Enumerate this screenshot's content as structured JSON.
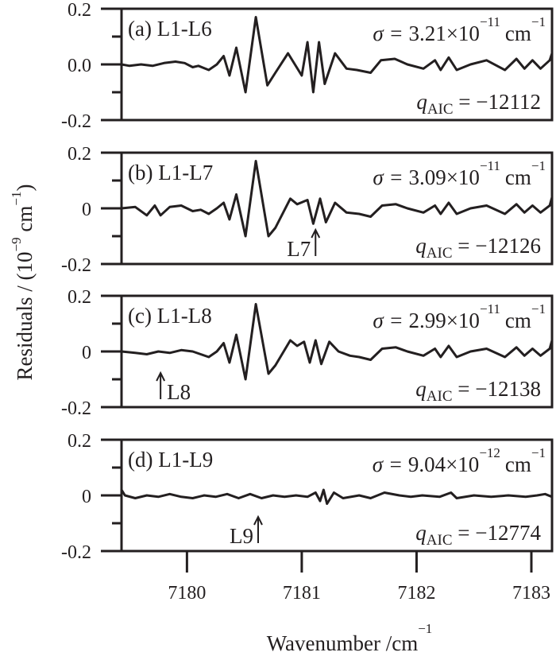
{
  "chart_data": {
    "type": "line",
    "xlabel": "Wavenumber /cm",
    "xlabel_sup": "−1",
    "ylabel": "Residuals / (10",
    "ylabel_sup1": "−9",
    "ylabel_mid": " cm",
    "ylabel_sup2": "−1",
    "ylabel_end": ")",
    "xlim": [
      7179.43,
      7183.18
    ],
    "ylim": [
      -0.2,
      0.2
    ],
    "x_ticks": [
      7180,
      7181,
      7182,
      7183
    ],
    "x_tick_labels": [
      "7180",
      "7181",
      "7182",
      "7183"
    ],
    "y_minor_step": 0.1,
    "color": "#231f20",
    "panels": [
      {
        "label": "(a) L1-L6",
        "y_tick_labels": [
          "0.2",
          "0.0",
          "-0.2"
        ],
        "sigma_prefix": "σ = ",
        "sigma_mantissa": "3.21×10",
        "sigma_exp": "−11",
        "sigma_unit": "cm",
        "sigma_unit_exp": "−1",
        "q_sym": "q",
        "q_sub": "AIC",
        "q_value": " = −12112",
        "arrow": null,
        "points": [
          [
            7179.43,
            0.0
          ],
          [
            7179.5,
            -0.005
          ],
          [
            7179.6,
            0.0
          ],
          [
            7179.7,
            -0.005
          ],
          [
            7179.8,
            0.005
          ],
          [
            7179.9,
            0.01
          ],
          [
            7179.98,
            0.005
          ],
          [
            7180.05,
            -0.01
          ],
          [
            7180.1,
            -0.005
          ],
          [
            7180.19,
            -0.02
          ],
          [
            7180.26,
            0.0
          ],
          [
            7180.32,
            0.03
          ],
          [
            7180.37,
            -0.04
          ],
          [
            7180.43,
            0.06
          ],
          [
            7180.51,
            -0.1
          ],
          [
            7180.6,
            0.17
          ],
          [
            7180.7,
            -0.075
          ],
          [
            7180.77,
            -0.03
          ],
          [
            7180.88,
            0.04
          ],
          [
            7181.0,
            -0.04
          ],
          [
            7181.05,
            0.08
          ],
          [
            7181.1,
            -0.1
          ],
          [
            7181.15,
            0.08
          ],
          [
            7181.2,
            -0.07
          ],
          [
            7181.29,
            0.04
          ],
          [
            7181.39,
            -0.015
          ],
          [
            7181.48,
            -0.02
          ],
          [
            7181.6,
            -0.03
          ],
          [
            7181.69,
            0.015
          ],
          [
            7181.81,
            0.02
          ],
          [
            7181.92,
            0.0
          ],
          [
            7182.06,
            -0.015
          ],
          [
            7182.16,
            0.015
          ],
          [
            7182.21,
            -0.02
          ],
          [
            7182.28,
            0.025
          ],
          [
            7182.35,
            -0.02
          ],
          [
            7182.47,
            0.0
          ],
          [
            7182.61,
            0.015
          ],
          [
            7182.77,
            -0.02
          ],
          [
            7182.87,
            0.02
          ],
          [
            7182.94,
            -0.015
          ],
          [
            7183.01,
            0.015
          ],
          [
            7183.08,
            -0.015
          ],
          [
            7183.16,
            0.015
          ],
          [
            7183.18,
            0.04
          ]
        ]
      },
      {
        "label": "(b) L1-L7",
        "y_tick_labels": [
          "0.2",
          "0",
          "-0.2"
        ],
        "sigma_prefix": "σ = ",
        "sigma_mantissa": "3.09×10",
        "sigma_exp": "−11",
        "sigma_unit": "cm",
        "sigma_unit_exp": "−1",
        "q_sym": "q",
        "q_sub": "AIC",
        "q_value": " = −12126",
        "arrow": {
          "label": "L7",
          "x": 7181.12,
          "label_side": "left"
        },
        "points": [
          [
            7179.43,
            0.0
          ],
          [
            7179.55,
            0.005
          ],
          [
            7179.65,
            -0.025
          ],
          [
            7179.72,
            0.01
          ],
          [
            7179.77,
            -0.025
          ],
          [
            7179.85,
            0.005
          ],
          [
            7179.95,
            0.01
          ],
          [
            7180.05,
            -0.01
          ],
          [
            7180.12,
            -0.005
          ],
          [
            7180.19,
            -0.02
          ],
          [
            7180.26,
            0.0
          ],
          [
            7180.32,
            0.02
          ],
          [
            7180.37,
            -0.04
          ],
          [
            7180.43,
            0.05
          ],
          [
            7180.51,
            -0.1
          ],
          [
            7180.6,
            0.17
          ],
          [
            7180.71,
            -0.1
          ],
          [
            7180.77,
            -0.07
          ],
          [
            7180.9,
            0.035
          ],
          [
            7180.96,
            0.015
          ],
          [
            7181.05,
            0.03
          ],
          [
            7181.1,
            -0.055
          ],
          [
            7181.16,
            0.035
          ],
          [
            7181.21,
            -0.05
          ],
          [
            7181.29,
            0.02
          ],
          [
            7181.39,
            -0.015
          ],
          [
            7181.5,
            -0.02
          ],
          [
            7181.6,
            -0.03
          ],
          [
            7181.7,
            0.01
          ],
          [
            7181.82,
            0.015
          ],
          [
            7181.92,
            0.0
          ],
          [
            7182.06,
            -0.015
          ],
          [
            7182.16,
            0.01
          ],
          [
            7182.21,
            -0.02
          ],
          [
            7182.28,
            0.02
          ],
          [
            7182.35,
            -0.02
          ],
          [
            7182.47,
            0.0
          ],
          [
            7182.61,
            0.01
          ],
          [
            7182.77,
            -0.02
          ],
          [
            7182.87,
            0.015
          ],
          [
            7182.94,
            -0.015
          ],
          [
            7183.01,
            0.01
          ],
          [
            7183.08,
            -0.015
          ],
          [
            7183.16,
            0.01
          ],
          [
            7183.18,
            0.04
          ]
        ]
      },
      {
        "label": "(c) L1-L8",
        "y_tick_labels": [
          "0.2",
          "0",
          "-0.2"
        ],
        "sigma_prefix": "σ = ",
        "sigma_mantissa": "2.99×10",
        "sigma_exp": "−11",
        "sigma_unit": "cm",
        "sigma_unit_exp": "−1",
        "q_sym": "q",
        "q_sub": "AIC",
        "q_value": " = −12138",
        "arrow": {
          "label": "L8",
          "x": 7179.77,
          "label_side": "right"
        },
        "points": [
          [
            7179.43,
            0.0
          ],
          [
            7179.55,
            -0.005
          ],
          [
            7179.65,
            -0.01
          ],
          [
            7179.75,
            0.0
          ],
          [
            7179.85,
            -0.005
          ],
          [
            7179.95,
            0.005
          ],
          [
            7180.05,
            0.0
          ],
          [
            7180.12,
            -0.01
          ],
          [
            7180.19,
            -0.02
          ],
          [
            7180.26,
            0.0
          ],
          [
            7180.32,
            0.03
          ],
          [
            7180.37,
            -0.04
          ],
          [
            7180.43,
            0.06
          ],
          [
            7180.51,
            -0.1
          ],
          [
            7180.6,
            0.17
          ],
          [
            7180.71,
            -0.08
          ],
          [
            7180.77,
            -0.05
          ],
          [
            7180.9,
            0.04
          ],
          [
            7180.96,
            0.02
          ],
          [
            7181.02,
            0.035
          ],
          [
            7181.07,
            -0.04
          ],
          [
            7181.12,
            0.04
          ],
          [
            7181.17,
            -0.045
          ],
          [
            7181.24,
            0.035
          ],
          [
            7181.32,
            0.0
          ],
          [
            7181.42,
            -0.015
          ],
          [
            7181.5,
            -0.02
          ],
          [
            7181.6,
            -0.03
          ],
          [
            7181.7,
            0.01
          ],
          [
            7181.82,
            0.015
          ],
          [
            7181.92,
            0.0
          ],
          [
            7182.06,
            -0.015
          ],
          [
            7182.16,
            0.01
          ],
          [
            7182.21,
            -0.02
          ],
          [
            7182.28,
            0.02
          ],
          [
            7182.35,
            -0.02
          ],
          [
            7182.47,
            0.0
          ],
          [
            7182.61,
            0.01
          ],
          [
            7182.77,
            -0.02
          ],
          [
            7182.87,
            0.015
          ],
          [
            7182.94,
            -0.015
          ],
          [
            7183.01,
            0.01
          ],
          [
            7183.08,
            -0.015
          ],
          [
            7183.16,
            0.01
          ],
          [
            7183.18,
            0.04
          ]
        ]
      },
      {
        "label": "(d) L1-L9",
        "y_tick_labels": [
          "0.2",
          "0",
          "-0.2"
        ],
        "sigma_prefix": "σ = ",
        "sigma_mantissa": "9.04×10",
        "sigma_exp": "−12",
        "sigma_unit": "cm",
        "sigma_unit_exp": "−1",
        "q_sym": "q",
        "q_sub": "AIC",
        "q_value": " = −12774",
        "arrow": {
          "label": "L9",
          "x": 7180.62,
          "label_side": "left"
        },
        "points": [
          [
            7179.43,
            0.02
          ],
          [
            7179.46,
            0.0
          ],
          [
            7179.55,
            -0.01
          ],
          [
            7179.65,
            0.0
          ],
          [
            7179.75,
            -0.005
          ],
          [
            7179.85,
            0.005
          ],
          [
            7179.95,
            -0.005
          ],
          [
            7180.05,
            -0.01
          ],
          [
            7180.15,
            0.0
          ],
          [
            7180.25,
            -0.005
          ],
          [
            7180.35,
            0.005
          ],
          [
            7180.45,
            -0.01
          ],
          [
            7180.55,
            0.005
          ],
          [
            7180.65,
            -0.01
          ],
          [
            7180.75,
            0.0
          ],
          [
            7180.85,
            -0.005
          ],
          [
            7180.95,
            0.0
          ],
          [
            7181.05,
            -0.005
          ],
          [
            7181.12,
            0.01
          ],
          [
            7181.16,
            -0.02
          ],
          [
            7181.19,
            0.02
          ],
          [
            7181.22,
            -0.03
          ],
          [
            7181.28,
            0.01
          ],
          [
            7181.36,
            -0.01
          ],
          [
            7181.5,
            0.0
          ],
          [
            7181.6,
            -0.01
          ],
          [
            7181.72,
            0.01
          ],
          [
            7181.85,
            0.0
          ],
          [
            7181.95,
            -0.005
          ],
          [
            7182.05,
            0.0
          ],
          [
            7182.2,
            -0.005
          ],
          [
            7182.3,
            0.01
          ],
          [
            7182.35,
            -0.01
          ],
          [
            7182.5,
            0.0
          ],
          [
            7182.65,
            -0.005
          ],
          [
            7182.8,
            0.0
          ],
          [
            7182.95,
            -0.005
          ],
          [
            7183.05,
            0.0
          ],
          [
            7183.12,
            0.005
          ],
          [
            7183.18,
            -0.005
          ]
        ]
      }
    ]
  }
}
